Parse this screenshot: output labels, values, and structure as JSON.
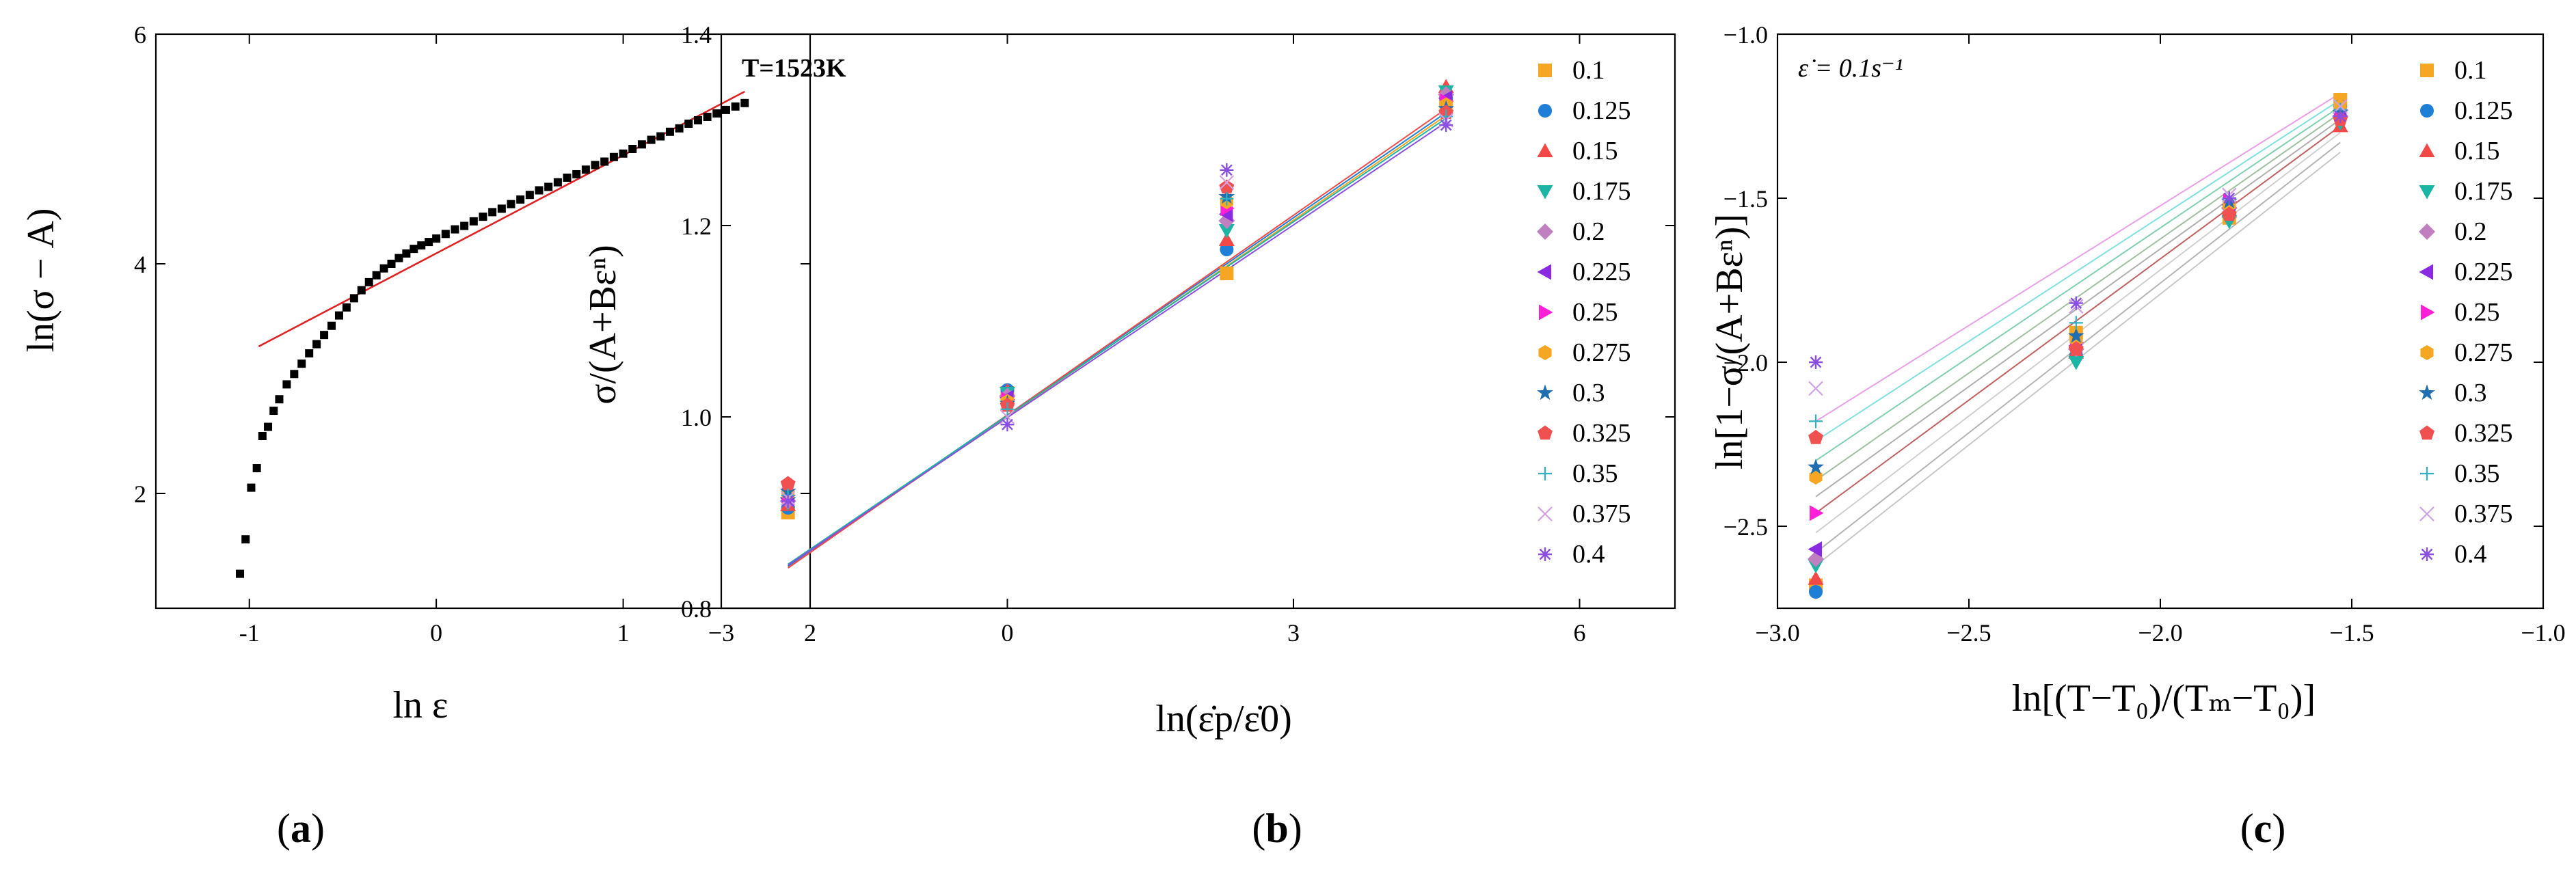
{
  "chart_data": [
    {
      "type": "scatter",
      "panel": "a",
      "caption": "a",
      "xlabel": "ln ε",
      "ylabel": "ln(σ − A)",
      "xlim": [
        -1.5,
        2
      ],
      "ylim": [
        1,
        6
      ],
      "x_ticks": [
        "-1",
        "0",
        "1",
        "2"
      ],
      "x_tick_values": [
        -1,
        0,
        1,
        2
      ],
      "y_ticks": [
        "2",
        "4",
        "6"
      ],
      "y_tick_values": [
        2,
        4,
        6
      ],
      "fit_line": {
        "x": [
          -0.95,
          1.65
        ],
        "y": [
          3.28,
          5.5
        ],
        "color": "#e02020"
      },
      "series": [
        {
          "name": "data",
          "color": "#000000",
          "x": [
            -1.05,
            -1.02,
            -0.99,
            -0.96,
            -0.93,
            -0.9,
            -0.87,
            -0.84,
            -0.8,
            -0.76,
            -0.72,
            -0.68,
            -0.64,
            -0.6,
            -0.56,
            -0.52,
            -0.48,
            -0.44,
            -0.4,
            -0.36,
            -0.32,
            -0.28,
            -0.24,
            -0.2,
            -0.16,
            -0.12,
            -0.08,
            -0.04,
            0.0,
            0.05,
            0.1,
            0.15,
            0.2,
            0.25,
            0.3,
            0.35,
            0.4,
            0.45,
            0.5,
            0.55,
            0.6,
            0.65,
            0.7,
            0.75,
            0.8,
            0.85,
            0.9,
            0.95,
            1.0,
            1.05,
            1.1,
            1.15,
            1.2,
            1.25,
            1.3,
            1.35,
            1.4,
            1.45,
            1.5,
            1.55,
            1.6,
            1.65
          ],
          "y": [
            1.3,
            1.6,
            2.05,
            2.22,
            2.5,
            2.58,
            2.72,
            2.82,
            2.95,
            3.04,
            3.13,
            3.22,
            3.3,
            3.38,
            3.46,
            3.55,
            3.62,
            3.7,
            3.77,
            3.84,
            3.9,
            3.96,
            4.0,
            4.05,
            4.09,
            4.13,
            4.16,
            4.19,
            4.22,
            4.26,
            4.3,
            4.33,
            4.37,
            4.41,
            4.45,
            4.48,
            4.52,
            4.56,
            4.6,
            4.64,
            4.67,
            4.71,
            4.75,
            4.78,
            4.82,
            4.86,
            4.89,
            4.93,
            4.96,
            5.0,
            5.04,
            5.08,
            5.11,
            5.15,
            5.18,
            5.22,
            5.25,
            5.28,
            5.31,
            5.34,
            5.37,
            5.4
          ]
        }
      ]
    },
    {
      "type": "scatter",
      "panel": "b",
      "caption": "b",
      "annotation": "T=1523K",
      "xlabel": "ln(ε̇p/ε̇0)",
      "ylabel": "σ/(A+Bεⁿ)",
      "xlim": [
        -3,
        7
      ],
      "ylim": [
        0.8,
        1.4
      ],
      "x_ticks": [
        "−3",
        "0",
        "3",
        "6"
      ],
      "x_tick_values": [
        -3,
        0,
        3,
        6
      ],
      "y_ticks": [
        "0.8",
        "1.0",
        "1.2",
        "1.4"
      ],
      "y_tick_values": [
        0.8,
        1.0,
        1.2,
        1.4
      ],
      "x": [
        -2.3,
        0,
        2.3,
        4.6
      ],
      "legend": [
        "0.1",
        "0.125",
        "0.15",
        "0.175",
        "0.2",
        "0.225",
        "0.25",
        "0.275",
        "0.3",
        "0.325",
        "0.35",
        "0.375",
        "0.4"
      ],
      "series": [
        {
          "name": "0.1",
          "marker": "square",
          "color": "#f5a623",
          "values": [
            0.9,
            1.025,
            1.15,
            1.33
          ]
        },
        {
          "name": "0.125",
          "marker": "circle",
          "color": "#1f7fd6",
          "values": [
            0.905,
            1.028,
            1.175,
            1.333
          ]
        },
        {
          "name": "0.15",
          "marker": "triangle-up",
          "color": "#f24848",
          "values": [
            0.908,
            1.027,
            1.185,
            1.345
          ]
        },
        {
          "name": "0.175",
          "marker": "triangle-down",
          "color": "#1cb5a5",
          "values": [
            0.91,
            1.025,
            1.195,
            1.34
          ]
        },
        {
          "name": "0.2",
          "marker": "diamond",
          "color": "#c080c0",
          "values": [
            0.912,
            1.022,
            1.205,
            1.337
          ]
        },
        {
          "name": "0.225",
          "marker": "triangle-left",
          "color": "#8a2be2",
          "values": [
            0.915,
            1.02,
            1.212,
            1.333
          ]
        },
        {
          "name": "0.25",
          "marker": "triangle-right",
          "color": "#ff1fd6",
          "values": [
            0.918,
            1.018,
            1.218,
            1.33
          ]
        },
        {
          "name": "0.275",
          "marker": "hexagon",
          "color": "#f5a623",
          "values": [
            0.92,
            1.016,
            1.225,
            1.326
          ]
        },
        {
          "name": "0.3",
          "marker": "star",
          "color": "#1f6fb0",
          "values": [
            0.922,
            1.014,
            1.23,
            1.322
          ]
        },
        {
          "name": "0.325",
          "marker": "pentagon",
          "color": "#f05050",
          "values": [
            0.93,
            1.012,
            1.24,
            1.318
          ]
        },
        {
          "name": "0.35",
          "marker": "plus",
          "color": "#30b0c0",
          "values": [
            0.918,
            1.008,
            1.228,
            1.314
          ]
        },
        {
          "name": "0.375",
          "marker": "x",
          "color": "#d0a0e0",
          "values": [
            0.915,
            1.0,
            1.245,
            1.31
          ]
        },
        {
          "name": "0.4",
          "marker": "asterisk",
          "color": "#8a4ee0",
          "values": [
            0.912,
            0.992,
            1.258,
            1.305
          ]
        }
      ],
      "fit_lines": [
        {
          "x": [
            -2.3,
            4.6
          ],
          "y": [
            0.843,
            1.315
          ],
          "color": "#f5a623"
        },
        {
          "x": [
            -2.3,
            4.6
          ],
          "y": [
            0.844,
            1.318
          ],
          "color": "#1f7fd6"
        },
        {
          "x": [
            -2.3,
            4.6
          ],
          "y": [
            0.842,
            1.322
          ],
          "color": "#f24848"
        },
        {
          "x": [
            -2.3,
            4.6
          ],
          "y": [
            0.846,
            1.312
          ],
          "color": "#1cb5a5"
        },
        {
          "x": [
            -2.3,
            4.6
          ],
          "y": [
            0.845,
            1.308
          ],
          "color": "#8a4ee0"
        }
      ]
    },
    {
      "type": "scatter",
      "panel": "c",
      "caption": "c",
      "annotation": "ε̇ = 0.1s⁻¹",
      "xlabel": "ln[(T−T₀)/(Tₘ−T₀)]",
      "ylabel": "ln[1−σ/(A+Bεⁿ)]",
      "xlim": [
        -3.0,
        -1.0
      ],
      "ylim": [
        -2.75,
        -1.0
      ],
      "x_ticks": [
        "−3.0",
        "−2.5",
        "−2.0",
        "−1.5",
        "−1.0"
      ],
      "x_tick_values": [
        -3.0,
        -2.5,
        -2.0,
        -1.5,
        -1.0
      ],
      "y_ticks": [
        "−2.5",
        "−2.0",
        "−1.5",
        "−1.0"
      ],
      "y_tick_values": [
        -2.5,
        -2.0,
        -1.5,
        -1.0
      ],
      "x": [
        -2.9,
        -2.22,
        -1.82,
        -1.53
      ],
      "legend": [
        "0.1",
        "0.125",
        "0.15",
        "0.175",
        "0.2",
        "0.225",
        "0.25",
        "0.275",
        "0.3",
        "0.325",
        "0.35",
        "0.375",
        "0.4"
      ],
      "series": [
        {
          "name": "0.1",
          "marker": "square",
          "color": "#f5a623",
          "values": [
            -2.68,
            -1.91,
            -1.56,
            -1.2
          ]
        },
        {
          "name": "0.125",
          "marker": "circle",
          "color": "#1f7fd6",
          "values": [
            -2.7,
            -1.98,
            -1.55,
            -1.22
          ]
        },
        {
          "name": "0.15",
          "marker": "triangle-up",
          "color": "#f24848",
          "values": [
            -2.66,
            -1.97,
            -1.54,
            -1.28
          ]
        },
        {
          "name": "0.175",
          "marker": "triangle-down",
          "color": "#1cb5a5",
          "values": [
            -2.62,
            -2.0,
            -1.57,
            -1.27
          ]
        },
        {
          "name": "0.2",
          "marker": "diamond",
          "color": "#c080c0",
          "values": [
            -2.6,
            -1.96,
            -1.53,
            -1.25
          ]
        },
        {
          "name": "0.225",
          "marker": "triangle-left",
          "color": "#8a2be2",
          "values": [
            -2.57,
            -1.95,
            -1.52,
            -1.24
          ]
        },
        {
          "name": "0.25",
          "marker": "triangle-right",
          "color": "#ff1fd6",
          "values": [
            -2.46,
            -1.94,
            -1.51,
            -1.23
          ]
        },
        {
          "name": "0.275",
          "marker": "hexagon",
          "color": "#f5a623",
          "values": [
            -2.35,
            -1.93,
            -1.52,
            -1.22
          ]
        },
        {
          "name": "0.3",
          "marker": "star",
          "color": "#1f6fb0",
          "values": [
            -2.32,
            -1.92,
            -1.51,
            -1.24
          ]
        },
        {
          "name": "0.325",
          "marker": "pentagon",
          "color": "#f05050",
          "values": [
            -2.23,
            -1.96,
            -1.55,
            -1.26
          ]
        },
        {
          "name": "0.35",
          "marker": "plus",
          "color": "#30b0c0",
          "values": [
            -2.18,
            -1.88,
            -1.5,
            -1.23
          ]
        },
        {
          "name": "0.375",
          "marker": "x",
          "color": "#d0a0e0",
          "values": [
            -2.08,
            -1.83,
            -1.49,
            -1.22
          ]
        },
        {
          "name": "0.4",
          "marker": "asterisk",
          "color": "#8a4ee0",
          "values": [
            -2.0,
            -1.82,
            -1.5,
            -1.25
          ]
        }
      ],
      "fit_lines": [
        {
          "x": [
            -2.9,
            -1.53
          ],
          "y": [
            -2.62,
            -1.36
          ],
          "color": "#c8c8c8"
        },
        {
          "x": [
            -2.9,
            -1.53
          ],
          "y": [
            -2.58,
            -1.33
          ],
          "color": "#b4b4b4"
        },
        {
          "x": [
            -2.9,
            -1.53
          ],
          "y": [
            -2.52,
            -1.3
          ],
          "color": "#d0d0d0"
        },
        {
          "x": [
            -2.9,
            -1.53
          ],
          "y": [
            -2.46,
            -1.28
          ],
          "color": "#c06060"
        },
        {
          "x": [
            -2.9,
            -1.53
          ],
          "y": [
            -2.41,
            -1.26
          ],
          "color": "#b0b0b0"
        },
        {
          "x": [
            -2.9,
            -1.53
          ],
          "y": [
            -2.36,
            -1.24
          ],
          "color": "#a0c0a0"
        },
        {
          "x": [
            -2.9,
            -1.53
          ],
          "y": [
            -2.3,
            -1.22
          ],
          "color": "#80d0b0"
        },
        {
          "x": [
            -2.9,
            -1.53
          ],
          "y": [
            -2.24,
            -1.2
          ],
          "color": "#80e0e0"
        },
        {
          "x": [
            -2.9,
            -1.53
          ],
          "y": [
            -2.18,
            -1.18
          ],
          "color": "#e8a0e8"
        }
      ]
    }
  ]
}
